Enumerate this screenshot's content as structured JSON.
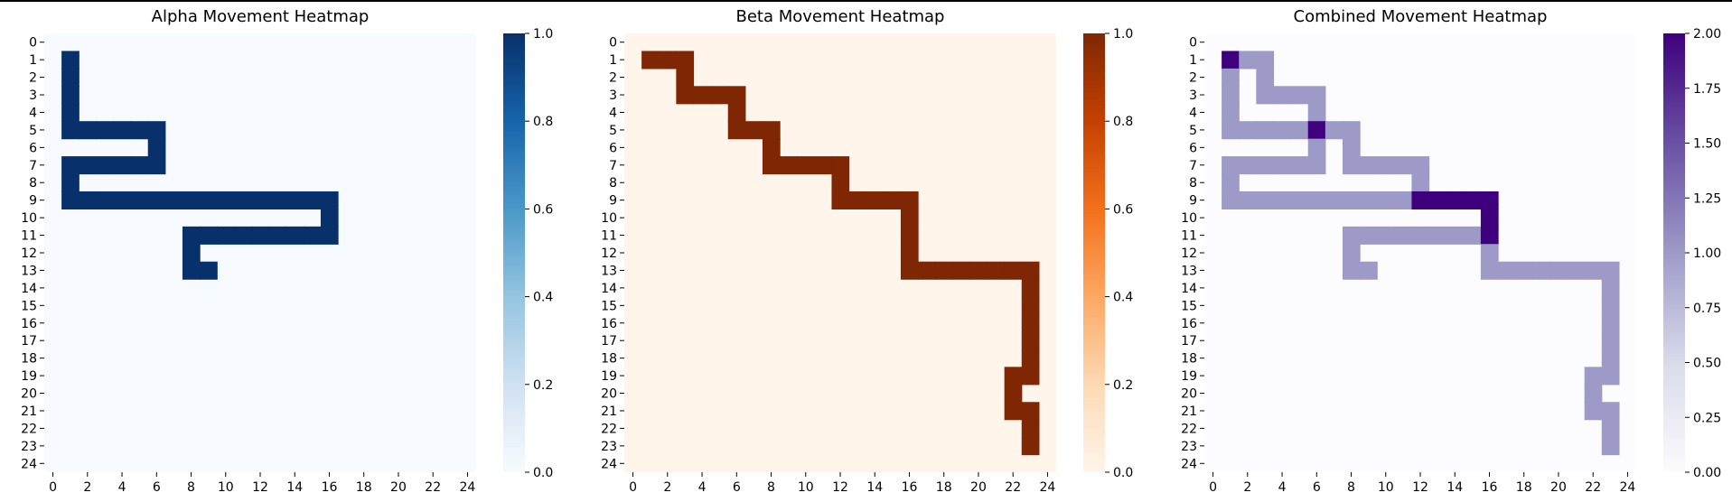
{
  "chart_data": [
    {
      "type": "heatmap",
      "title": "Alpha Movement Heatmap",
      "x_ticks": [
        "0",
        "2",
        "4",
        "6",
        "8",
        "10",
        "12",
        "14",
        "16",
        "18",
        "20",
        "22",
        "24"
      ],
      "y_ticks": [
        "0",
        "1",
        "2",
        "3",
        "4",
        "5",
        "6",
        "7",
        "8",
        "9",
        "10",
        "11",
        "12",
        "13",
        "14",
        "15",
        "16",
        "17",
        "18",
        "19",
        "20",
        "21",
        "22",
        "23",
        "24"
      ],
      "grid_size": [
        25,
        25
      ],
      "colormap": "Blues",
      "color_low": "#f7fbff",
      "color_high": "#08306b",
      "vmin": 0,
      "vmax": 1,
      "colorbar_ticks": [
        "0.0",
        "0.2",
        "0.4",
        "0.6",
        "0.8",
        "1.0"
      ],
      "cells_value_1_row_col": [
        [
          1,
          1
        ],
        [
          2,
          1
        ],
        [
          3,
          1
        ],
        [
          4,
          1
        ],
        [
          5,
          1
        ],
        [
          5,
          2
        ],
        [
          5,
          3
        ],
        [
          5,
          4
        ],
        [
          5,
          5
        ],
        [
          5,
          6
        ],
        [
          6,
          6
        ],
        [
          7,
          6
        ],
        [
          7,
          5
        ],
        [
          7,
          4
        ],
        [
          7,
          3
        ],
        [
          7,
          2
        ],
        [
          7,
          1
        ],
        [
          8,
          1
        ],
        [
          9,
          1
        ],
        [
          9,
          2
        ],
        [
          9,
          3
        ],
        [
          9,
          4
        ],
        [
          9,
          5
        ],
        [
          9,
          6
        ],
        [
          9,
          7
        ],
        [
          9,
          8
        ],
        [
          9,
          9
        ],
        [
          9,
          10
        ],
        [
          9,
          11
        ],
        [
          9,
          12
        ],
        [
          9,
          13
        ],
        [
          9,
          14
        ],
        [
          9,
          15
        ],
        [
          9,
          16
        ],
        [
          10,
          16
        ],
        [
          11,
          16
        ],
        [
          11,
          15
        ],
        [
          11,
          14
        ],
        [
          11,
          13
        ],
        [
          11,
          12
        ],
        [
          11,
          11
        ],
        [
          11,
          10
        ],
        [
          11,
          9
        ],
        [
          11,
          8
        ],
        [
          12,
          8
        ],
        [
          13,
          8
        ],
        [
          13,
          9
        ]
      ]
    },
    {
      "type": "heatmap",
      "title": "Beta Movement Heatmap",
      "x_ticks": [
        "0",
        "2",
        "4",
        "6",
        "8",
        "10",
        "12",
        "14",
        "16",
        "18",
        "20",
        "22",
        "24"
      ],
      "y_ticks": [
        "0",
        "1",
        "2",
        "3",
        "4",
        "5",
        "6",
        "7",
        "8",
        "9",
        "10",
        "11",
        "12",
        "13",
        "14",
        "15",
        "16",
        "17",
        "18",
        "19",
        "20",
        "21",
        "22",
        "23",
        "24"
      ],
      "grid_size": [
        25,
        25
      ],
      "colormap": "Oranges",
      "color_low": "#fff5eb",
      "color_high": "#7f2704",
      "vmin": 0,
      "vmax": 1,
      "colorbar_ticks": [
        "0.0",
        "0.2",
        "0.4",
        "0.6",
        "0.8",
        "1.0"
      ],
      "cells_value_1_row_col": [
        [
          1,
          1
        ],
        [
          1,
          2
        ],
        [
          1,
          3
        ],
        [
          2,
          3
        ],
        [
          3,
          3
        ],
        [
          3,
          4
        ],
        [
          3,
          5
        ],
        [
          3,
          6
        ],
        [
          4,
          6
        ],
        [
          5,
          6
        ],
        [
          5,
          7
        ],
        [
          5,
          8
        ],
        [
          6,
          8
        ],
        [
          7,
          8
        ],
        [
          7,
          9
        ],
        [
          7,
          10
        ],
        [
          7,
          11
        ],
        [
          7,
          12
        ],
        [
          8,
          12
        ],
        [
          9,
          12
        ],
        [
          9,
          13
        ],
        [
          9,
          14
        ],
        [
          9,
          15
        ],
        [
          9,
          16
        ],
        [
          10,
          16
        ],
        [
          11,
          16
        ],
        [
          12,
          16
        ],
        [
          13,
          16
        ],
        [
          13,
          17
        ],
        [
          13,
          18
        ],
        [
          13,
          19
        ],
        [
          13,
          20
        ],
        [
          13,
          21
        ],
        [
          13,
          22
        ],
        [
          13,
          23
        ],
        [
          14,
          23
        ],
        [
          15,
          23
        ],
        [
          16,
          23
        ],
        [
          17,
          23
        ],
        [
          18,
          23
        ],
        [
          19,
          23
        ],
        [
          19,
          22
        ],
        [
          20,
          22
        ],
        [
          21,
          22
        ],
        [
          21,
          23
        ],
        [
          22,
          23
        ],
        [
          23,
          23
        ]
      ]
    },
    {
      "type": "heatmap",
      "title": "Combined Movement Heatmap",
      "x_ticks": [
        "0",
        "2",
        "4",
        "6",
        "8",
        "10",
        "12",
        "14",
        "16",
        "18",
        "20",
        "22",
        "24"
      ],
      "y_ticks": [
        "0",
        "1",
        "2",
        "3",
        "4",
        "5",
        "6",
        "7",
        "8",
        "9",
        "10",
        "11",
        "12",
        "13",
        "14",
        "15",
        "16",
        "17",
        "18",
        "19",
        "20",
        "21",
        "22",
        "23",
        "24"
      ],
      "grid_size": [
        25,
        25
      ],
      "colormap": "Purples",
      "color_low": "#fcfbfd",
      "color_mid": "#9e9ac8",
      "color_high": "#3f007d",
      "vmin": 0,
      "vmax": 2,
      "colorbar_ticks": [
        "0.00",
        "0.25",
        "0.50",
        "0.75",
        "1.00",
        "1.25",
        "1.50",
        "1.75",
        "2.00"
      ],
      "combined_from": [
        "Alpha Movement Heatmap",
        "Beta Movement Heatmap"
      ]
    }
  ]
}
